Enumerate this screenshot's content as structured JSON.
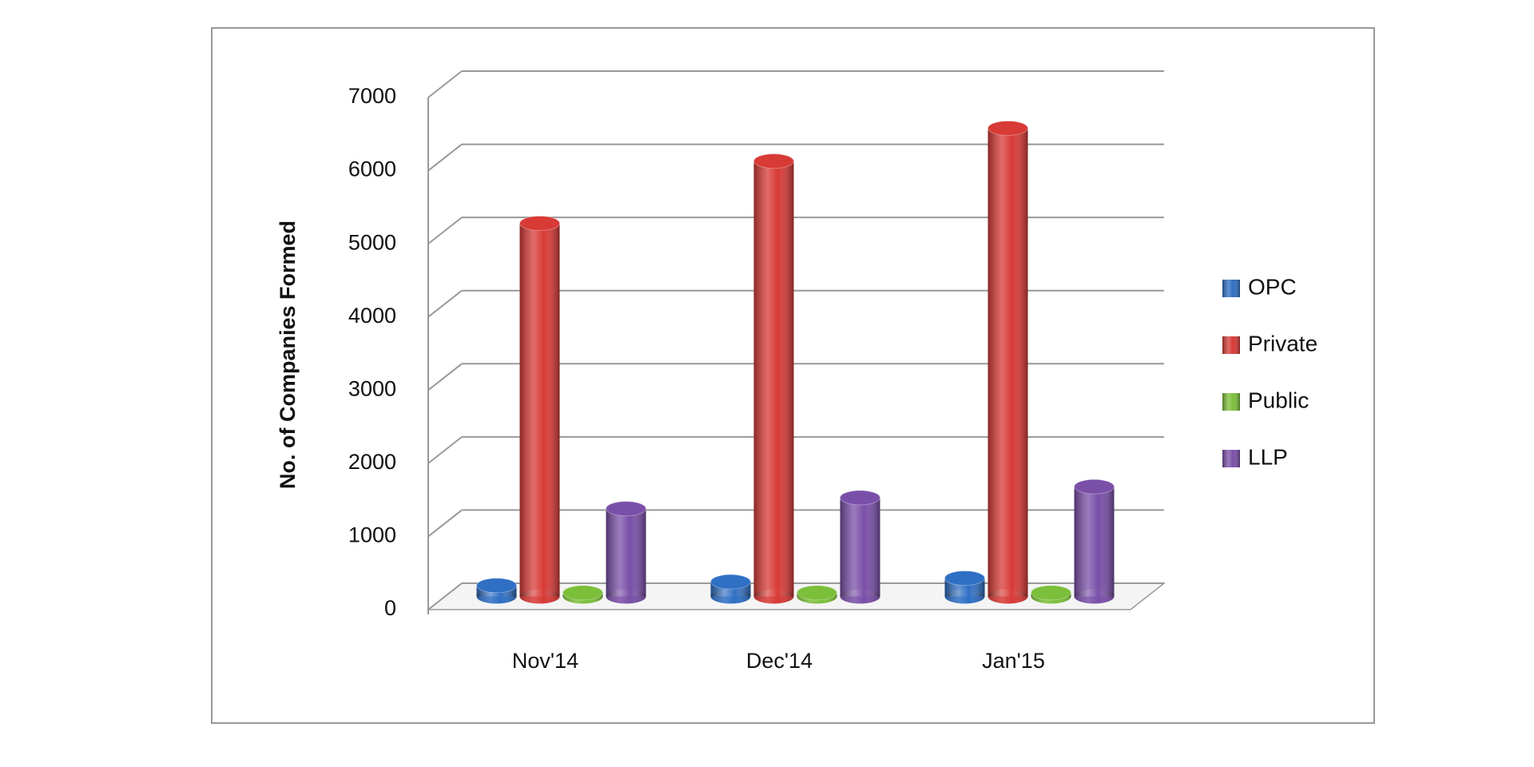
{
  "chart_data": {
    "type": "bar3d",
    "y_axis_label": "No. of Companies Formed",
    "categories": [
      "Nov'14",
      "Dec'14",
      "Jan'15"
    ],
    "series": [
      {
        "name": "OPC",
        "color": "#2f6fc4",
        "values": [
          150,
          200,
          250
        ]
      },
      {
        "name": "Private",
        "color": "#d83a36",
        "values": [
          5100,
          5950,
          6400
        ]
      },
      {
        "name": "Public",
        "color": "#7cbf3a",
        "values": [
          50,
          50,
          50
        ]
      },
      {
        "name": "LLP",
        "color": "#7a4fa8",
        "values": [
          1200,
          1350,
          1500
        ]
      }
    ],
    "ylim": [
      0,
      7000
    ],
    "yticks": [
      0,
      1000,
      2000,
      3000,
      4000,
      5000,
      6000,
      7000
    ],
    "grid": true,
    "legend": "right"
  }
}
